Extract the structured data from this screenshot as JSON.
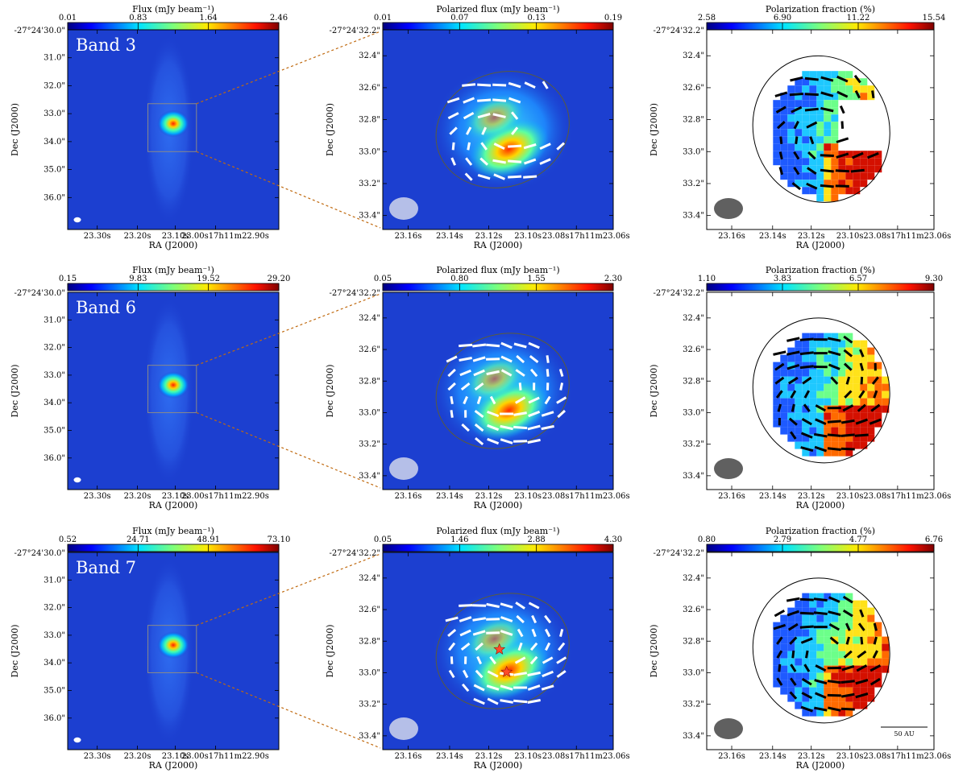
{
  "figure": {
    "decl_origin_label": "-27°24'30.0\"",
    "zoom_origin_label": "-27°24'32.2\"",
    "scale_bar_label": "50 AU"
  },
  "colors": {
    "map_background": "#1c3fd0",
    "beam_wide": "#ffffff",
    "beam_zoom": "#c7cdea",
    "beam_frac": "#606060",
    "vectors_light": "#ffffff",
    "vectors_dark": "#000000",
    "connector": "#c06a10",
    "star": "#ff4a2a"
  },
  "chart_data": [
    {
      "type": "heatmap",
      "band": "Band 3",
      "panel": "wide",
      "title": "Flux (mJy beam⁻¹)",
      "colorbar_ticks": [
        "0.01",
        "0.83",
        "1.64",
        "2.46"
      ],
      "xlabel": "RA (J2000)",
      "ylabel": "Dec (J2000)",
      "x_ticks": [
        "23.30s",
        "23.20s",
        "23.10s",
        "23.00s17h11m22.90s"
      ],
      "y_ticks": [
        "31.0\"",
        "32.0\"",
        "33.0\"",
        "34.0\"",
        "35.0\"",
        "36.0\""
      ]
    },
    {
      "type": "heatmap",
      "band": "Band 3",
      "panel": "zoom",
      "title": "Polarized flux (mJy beam⁻¹)",
      "colorbar_ticks": [
        "0.01",
        "0.07",
        "0.13",
        "0.19"
      ],
      "xlabel": "RA (J2000)",
      "ylabel": "Dec (J2000)",
      "x_ticks": [
        "23.16s",
        "23.14s",
        "23.12s",
        "23.10s",
        "23.08s17h11m23.06s"
      ],
      "y_ticks": [
        "32.4\"",
        "32.6\"",
        "32.8\"",
        "33.0\"",
        "33.2\"",
        "33.4\""
      ]
    },
    {
      "type": "heatmap",
      "band": "Band 3",
      "panel": "fraction",
      "title": "Polarization fraction (%)",
      "colorbar_ticks": [
        "2.58",
        "6.90",
        "11.22",
        "15.54"
      ],
      "xlabel": "RA (J2000)",
      "ylabel": "Dec (J2000)",
      "x_ticks": [
        "23.16s",
        "23.14s",
        "23.12s",
        "23.10s",
        "23.08s17h11m23.06s"
      ],
      "y_ticks": [
        "32.4\"",
        "32.6\"",
        "32.8\"",
        "33.0\"",
        "33.2\"",
        "33.4\""
      ]
    },
    {
      "type": "heatmap",
      "band": "Band 6",
      "panel": "wide",
      "title": "Flux (mJy beam⁻¹)",
      "colorbar_ticks": [
        "0.15",
        "9.83",
        "19.52",
        "29.20"
      ],
      "xlabel": "RA (J2000)",
      "ylabel": "Dec (J2000)",
      "x_ticks": [
        "23.30s",
        "23.20s",
        "23.10s",
        "23.00s17h11m22.90s"
      ],
      "y_ticks": [
        "31.0\"",
        "32.0\"",
        "33.0\"",
        "34.0\"",
        "35.0\"",
        "36.0\""
      ]
    },
    {
      "type": "heatmap",
      "band": "Band 6",
      "panel": "zoom",
      "title": "Polarized flux (mJy beam⁻¹)",
      "colorbar_ticks": [
        "0.05",
        "0.80",
        "1.55",
        "2.30"
      ],
      "xlabel": "RA (J2000)",
      "ylabel": "Dec (J2000)",
      "x_ticks": [
        "23.16s",
        "23.14s",
        "23.12s",
        "23.10s",
        "23.08s17h11m23.06s"
      ],
      "y_ticks": [
        "32.4\"",
        "32.6\"",
        "32.8\"",
        "33.0\"",
        "33.2\"",
        "33.4\""
      ]
    },
    {
      "type": "heatmap",
      "band": "Band 6",
      "panel": "fraction",
      "title": "Polarization fraction (%)",
      "colorbar_ticks": [
        "1.10",
        "3.83",
        "6.57",
        "9.30"
      ],
      "xlabel": "RA (J2000)",
      "ylabel": "Dec (J2000)",
      "x_ticks": [
        "23.16s",
        "23.14s",
        "23.12s",
        "23.10s",
        "23.08s17h11m23.06s"
      ],
      "y_ticks": [
        "32.4\"",
        "32.6\"",
        "32.8\"",
        "33.0\"",
        "33.2\"",
        "33.4\""
      ]
    },
    {
      "type": "heatmap",
      "band": "Band 7",
      "panel": "wide",
      "title": "Flux (mJy beam⁻¹)",
      "colorbar_ticks": [
        "0.52",
        "24.71",
        "48.91",
        "73.10"
      ],
      "xlabel": "RA (J2000)",
      "ylabel": "Dec (J2000)",
      "x_ticks": [
        "23.30s",
        "23.20s",
        "23.10s",
        "23.00s17h11m22.90s"
      ],
      "y_ticks": [
        "31.0\"",
        "32.0\"",
        "33.0\"",
        "34.0\"",
        "35.0\"",
        "36.0\""
      ]
    },
    {
      "type": "heatmap",
      "band": "Band 7",
      "panel": "zoom",
      "title": "Polarized flux (mJy beam⁻¹)",
      "colorbar_ticks": [
        "0.05",
        "1.46",
        "2.88",
        "4.30"
      ],
      "xlabel": "RA (J2000)",
      "ylabel": "Dec (J2000)",
      "x_ticks": [
        "23.16s",
        "23.14s",
        "23.12s",
        "23.10s",
        "23.08s17h11m23.06s"
      ],
      "y_ticks": [
        "32.4\"",
        "32.6\"",
        "32.8\"",
        "33.0\"",
        "33.2\"",
        "33.4\""
      ]
    },
    {
      "type": "heatmap",
      "band": "Band 7",
      "panel": "fraction",
      "title": "Polarization fraction (%)",
      "colorbar_ticks": [
        "0.80",
        "2.79",
        "4.77",
        "6.76"
      ],
      "xlabel": "RA (J2000)",
      "ylabel": "Dec (J2000)",
      "x_ticks": [
        "23.16s",
        "23.14s",
        "23.12s",
        "23.10s",
        "23.08s17h11m23.06s"
      ],
      "y_ticks": [
        "32.4\"",
        "32.6\"",
        "32.8\"",
        "33.0\"",
        "33.2\"",
        "33.4\""
      ]
    }
  ]
}
